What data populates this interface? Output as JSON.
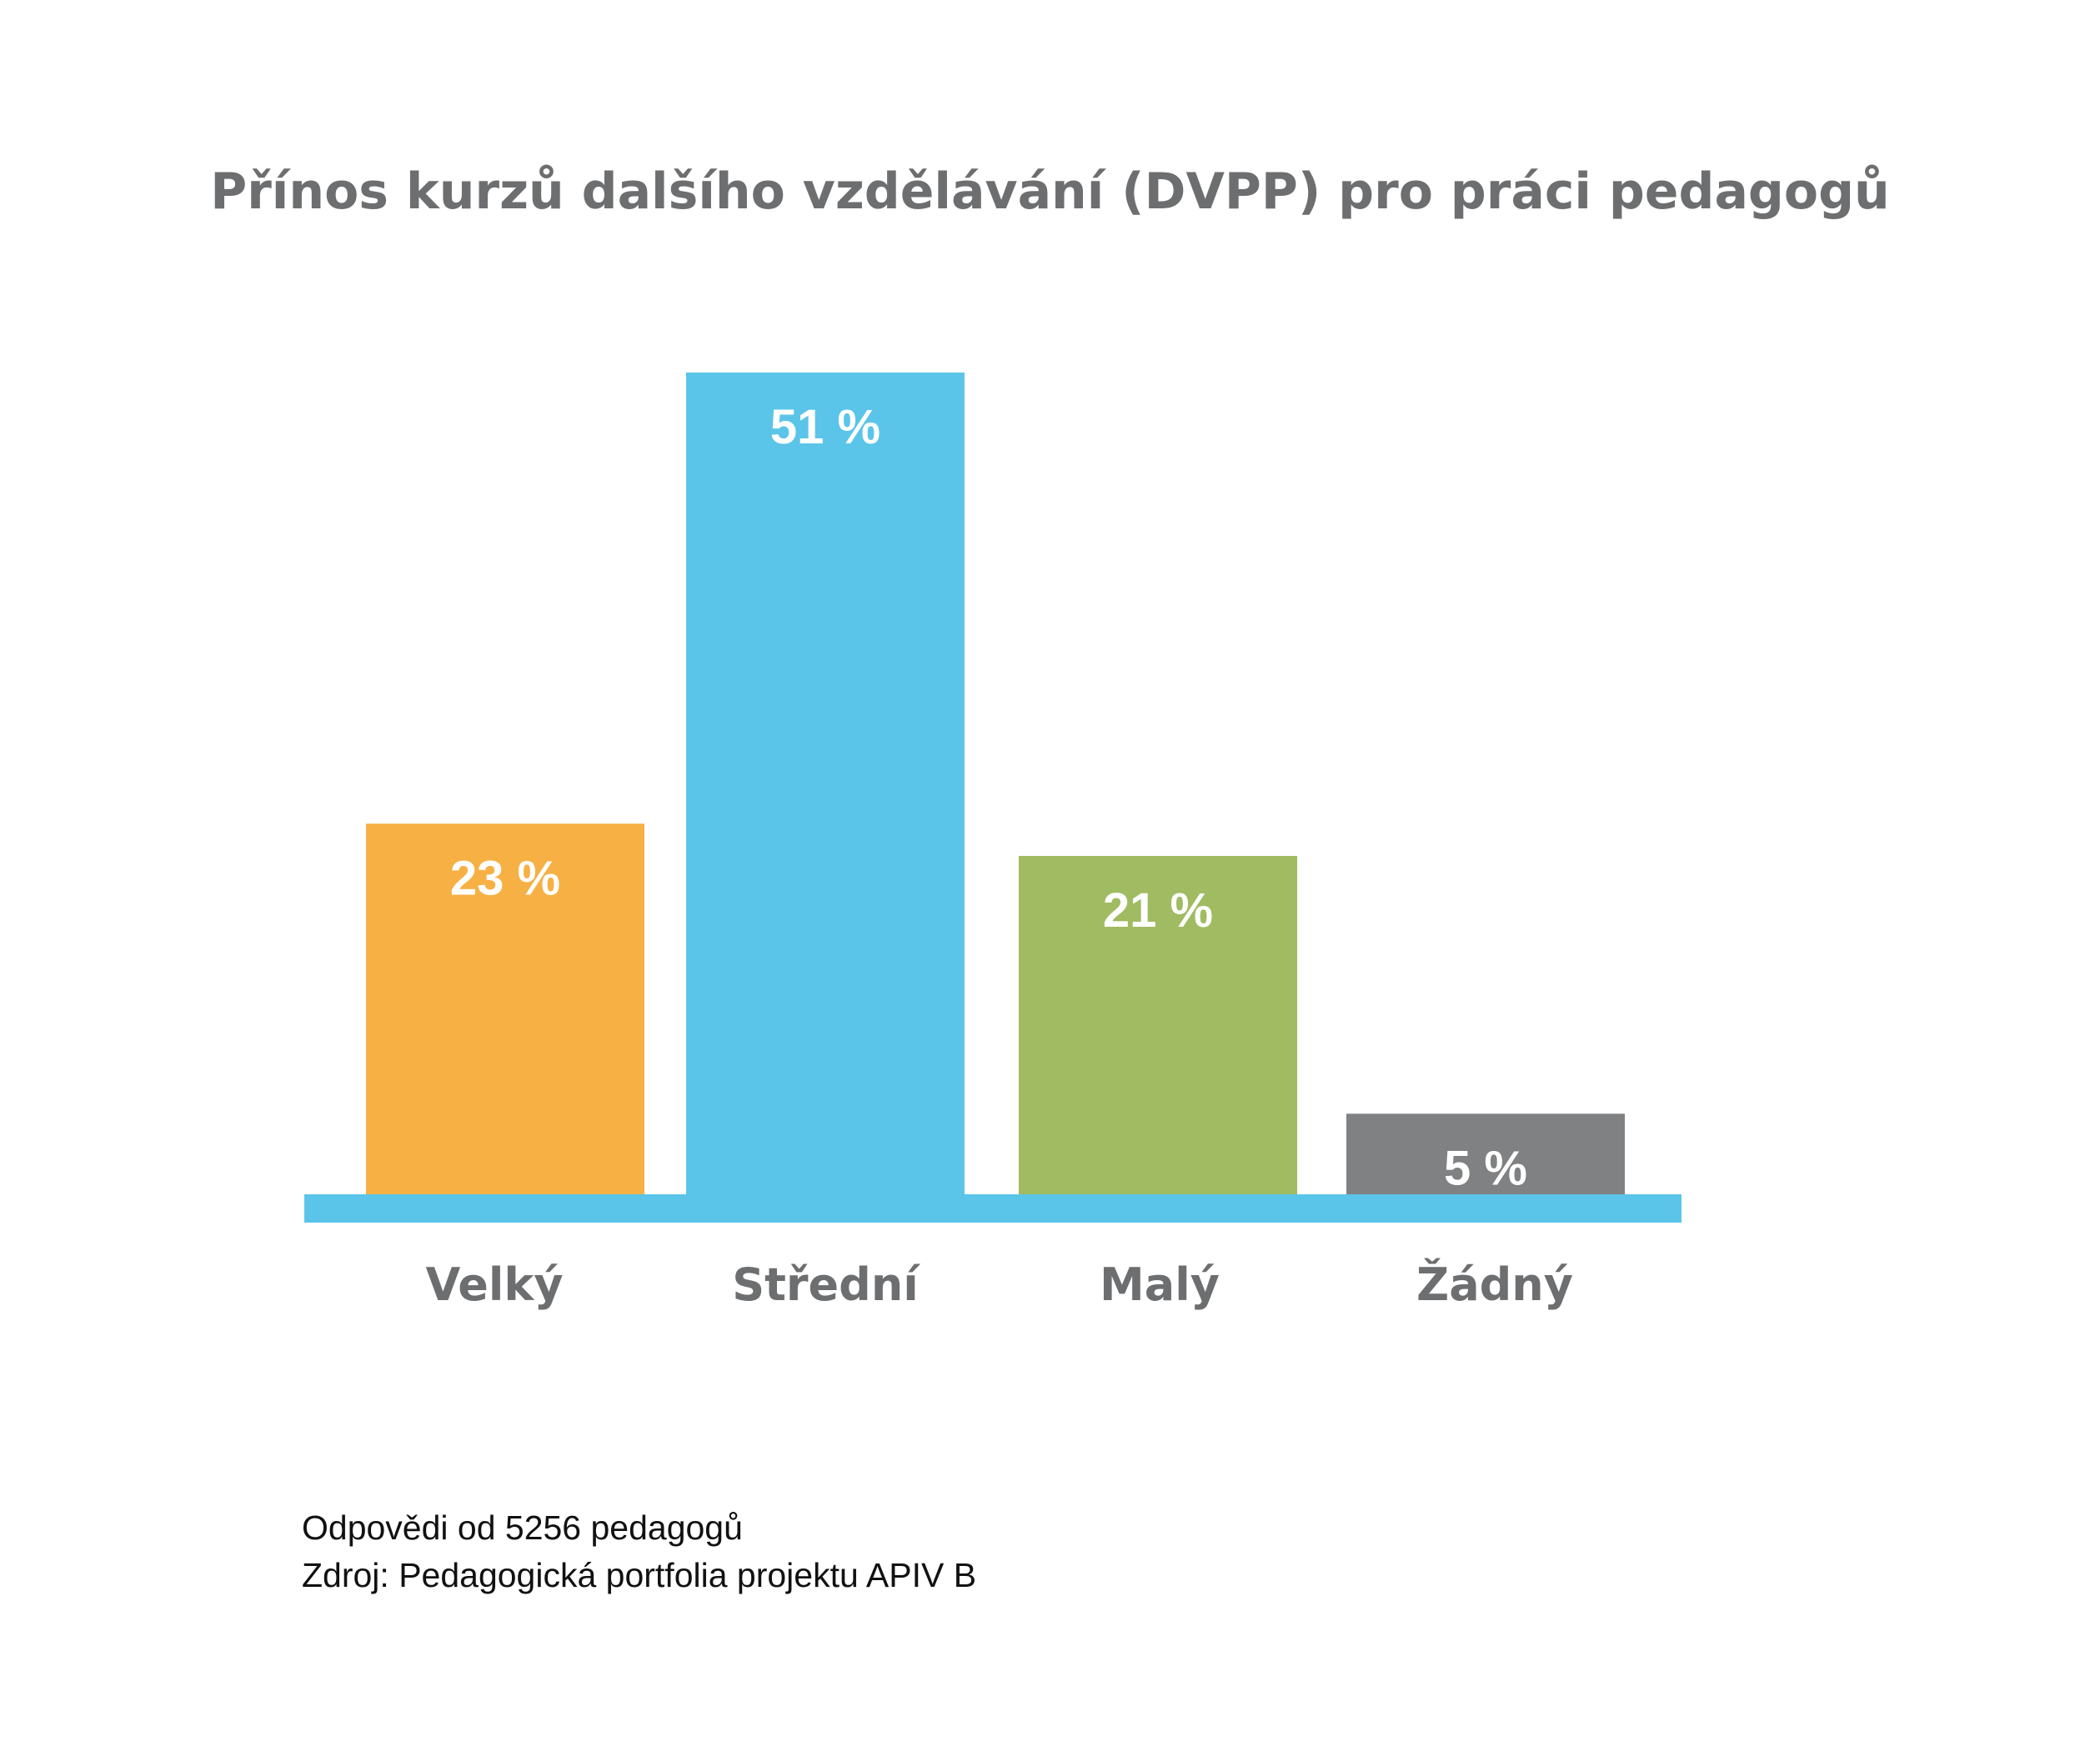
{
  "chart_data": {
    "type": "bar",
    "title": "Přínos kurzů dalšího vzdělávání (DVPP) pro práci pedagogů",
    "categories": [
      "Velký",
      "Střední",
      "Malý",
      "Žádný"
    ],
    "values": [
      23,
      51,
      21,
      5
    ],
    "value_labels": [
      "23 %",
      "51 %",
      "21 %",
      "5 %"
    ],
    "bar_colors": [
      "#f7b044",
      "#5bc5e9",
      "#a0bb61",
      "#808183"
    ],
    "baseline_color": "#5bc5e9",
    "ylim": [
      0,
      51
    ],
    "grid": false,
    "legend": "none",
    "xlabel": "",
    "ylabel": ""
  },
  "footnotes": {
    "responses": "Odpovědi od 5256 pedagogů",
    "source": "Zdroj: Pedagogická portfolia projektu APIV B"
  }
}
